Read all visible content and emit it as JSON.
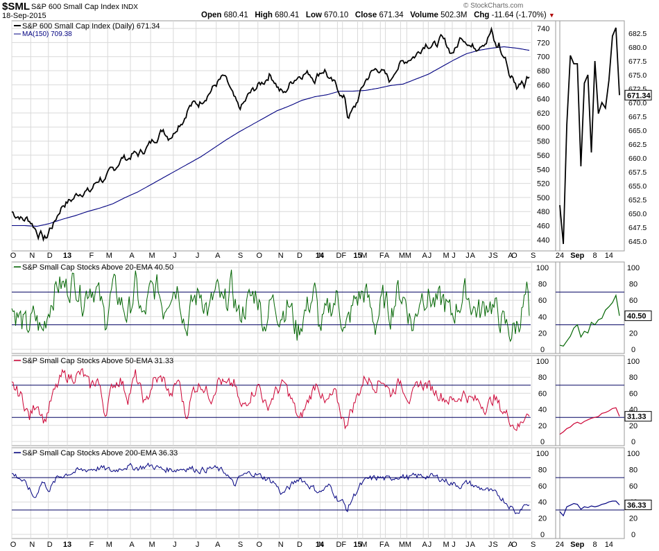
{
  "header": {
    "symbol": "$SML",
    "name": "S&P 600 Small Cap Index",
    "exchange": "INDX",
    "date": "18-Sep-2015",
    "watermark": "© StockCharts.com",
    "open_label": "Open",
    "open": "680.41",
    "high_label": "High",
    "high": "680.41",
    "low_label": "Low",
    "low": "670.10",
    "close_label": "Close",
    "close": "671.34",
    "volume_label": "Volume",
    "volume": "502.3M",
    "chg_label": "Chg",
    "chg": "-11.64 (-1.70%)"
  },
  "colors": {
    "price": "#000000",
    "ma": "#000080",
    "pct20": "#006400",
    "pct50": "#cc0033",
    "pct200": "#000080",
    "grid": "#d9d9d9",
    "ref": "#000060"
  },
  "chart_data": [
    {
      "id": "price",
      "type": "line",
      "title": "S&P 600 Small Cap Index (Daily) 671.34",
      "ma_label": "MA(150) 709.38",
      "last_value": "671.34",
      "ylim": [
        430,
        745
      ],
      "yticks": [
        440,
        460,
        480,
        500,
        520,
        540,
        560,
        580,
        600,
        620,
        640,
        660,
        680,
        700,
        720,
        740
      ],
      "keypoints": [
        [
          0,
          480
        ],
        [
          3,
          475
        ],
        [
          6,
          474
        ],
        [
          9,
          468
        ],
        [
          12,
          470
        ],
        [
          15,
          466
        ],
        [
          18,
          458
        ],
        [
          21,
          448
        ],
        [
          24,
          448
        ],
        [
          25,
          441
        ],
        [
          28,
          444
        ],
        [
          30,
          455
        ],
        [
          33,
          462
        ],
        [
          36,
          474
        ],
        [
          40,
          489
        ],
        [
          44,
          494
        ],
        [
          48,
          497
        ],
        [
          52,
          505
        ],
        [
          58,
          510
        ],
        [
          62,
          508
        ],
        [
          66,
          519
        ],
        [
          70,
          528
        ],
        [
          74,
          523
        ],
        [
          78,
          536
        ],
        [
          82,
          542
        ],
        [
          84,
          548
        ],
        [
          88,
          557
        ],
        [
          92,
          555
        ],
        [
          96,
          562
        ],
        [
          100,
          561
        ],
        [
          104,
          566
        ],
        [
          108,
          573
        ],
        [
          112,
          581
        ],
        [
          116,
          588
        ],
        [
          120,
          597
        ],
        [
          124,
          587
        ],
        [
          128,
          591
        ],
        [
          132,
          605
        ],
        [
          136,
          611
        ],
        [
          140,
          628
        ],
        [
          144,
          633
        ],
        [
          148,
          633
        ],
        [
          152,
          641
        ],
        [
          156,
          649
        ],
        [
          160,
          657
        ],
        [
          164,
          665
        ],
        [
          168,
          671
        ],
        [
          172,
          658
        ],
        [
          176,
          640
        ],
        [
          180,
          625
        ],
        [
          184,
          633
        ],
        [
          188,
          646
        ],
        [
          192,
          653
        ],
        [
          196,
          660
        ],
        [
          200,
          665
        ],
        [
          204,
          675
        ],
        [
          208,
          667
        ],
        [
          212,
          653
        ],
        [
          216,
          647
        ],
        [
          220,
          660
        ],
        [
          224,
          669
        ],
        [
          228,
          674
        ],
        [
          232,
          677
        ],
        [
          236,
          676
        ],
        [
          240,
          669
        ],
        [
          244,
          678
        ],
        [
          248,
          682
        ],
        [
          252,
          666
        ],
        [
          256,
          660
        ],
        [
          260,
          650
        ],
        [
          262,
          642
        ],
        [
          264,
          640
        ],
        [
          266,
          616
        ],
        [
          268,
          618
        ],
        [
          272,
          628
        ],
        [
          276,
          648
        ],
        [
          280,
          665
        ],
        [
          284,
          676
        ],
        [
          288,
          681
        ],
        [
          292,
          683
        ],
        [
          296,
          673
        ],
        [
          300,
          664
        ],
        [
          304,
          683
        ],
        [
          308,
          690
        ],
        [
          312,
          694
        ],
        [
          316,
          699
        ],
        [
          320,
          702
        ],
        [
          324,
          711
        ],
        [
          328,
          720
        ],
        [
          332,
          717
        ],
        [
          336,
          716
        ],
        [
          340,
          725
        ],
        [
          344,
          718
        ],
        [
          348,
          706
        ],
        [
          352,
          711
        ],
        [
          356,
          729
        ],
        [
          360,
          725
        ],
        [
          364,
          715
        ],
        [
          368,
          713
        ],
        [
          372,
          721
        ],
        [
          376,
          723
        ],
        [
          378,
          730
        ],
        [
          380,
          736
        ],
        [
          382,
          722
        ],
        [
          384,
          712
        ],
        [
          386,
          718
        ],
        [
          388,
          703
        ],
        [
          390,
          699
        ],
        [
          392,
          693
        ],
        [
          394,
          675
        ],
        [
          396,
          672
        ],
        [
          398,
          665
        ],
        [
          400,
          657
        ],
        [
          402,
          660
        ],
        [
          404,
          668
        ],
        [
          406,
          663
        ],
        [
          408,
          672
        ],
        [
          410,
          671
        ]
      ],
      "ma_keypoints": [
        [
          0,
          460
        ],
        [
          10,
          460
        ],
        [
          20,
          459
        ],
        [
          30,
          463
        ],
        [
          40,
          469
        ],
        [
          50,
          474
        ],
        [
          60,
          480
        ],
        [
          70,
          485
        ],
        [
          80,
          491
        ],
        [
          90,
          500
        ],
        [
          100,
          508
        ],
        [
          110,
          518
        ],
        [
          120,
          528
        ],
        [
          130,
          538
        ],
        [
          140,
          548
        ],
        [
          150,
          558
        ],
        [
          160,
          570
        ],
        [
          170,
          582
        ],
        [
          180,
          593
        ],
        [
          190,
          603
        ],
        [
          200,
          613
        ],
        [
          210,
          623
        ],
        [
          220,
          630
        ],
        [
          230,
          638
        ],
        [
          240,
          643
        ],
        [
          250,
          646
        ],
        [
          260,
          651
        ],
        [
          270,
          651
        ],
        [
          280,
          652
        ],
        [
          290,
          655
        ],
        [
          300,
          659
        ],
        [
          310,
          661
        ],
        [
          320,
          668
        ],
        [
          330,
          675
        ],
        [
          340,
          685
        ],
        [
          350,
          695
        ],
        [
          360,
          704
        ],
        [
          370,
          709
        ],
        [
          380,
          712
        ],
        [
          390,
          714
        ],
        [
          400,
          712
        ],
        [
          410,
          709
        ]
      ],
      "xticks": [
        [
          0,
          "O"
        ],
        [
          15,
          "N"
        ],
        [
          29,
          "D"
        ],
        [
          44,
          "13"
        ],
        [
          62,
          "F"
        ],
        [
          76,
          "M"
        ],
        [
          94,
          "A"
        ],
        [
          110,
          "M"
        ],
        [
          128,
          "J"
        ],
        [
          146,
          "J"
        ],
        [
          162,
          "A"
        ],
        [
          180,
          "S"
        ],
        [
          195,
          "O"
        ],
        [
          212,
          "N"
        ],
        [
          227,
          "D"
        ],
        [
          244,
          "14"
        ],
        [
          262,
          "F"
        ],
        [
          278,
          "M"
        ],
        [
          296,
          "A"
        ],
        [
          313,
          "M"
        ],
        [
          330,
          "J"
        ],
        [
          349,
          "J"
        ],
        [
          364,
          "A"
        ],
        [
          382,
          "S"
        ],
        [
          397,
          "O"
        ]
      ],
      "xticks_b": [
        [
          0,
          "N"
        ],
        [
          14,
          "D"
        ],
        [
          30,
          "15"
        ],
        [
          48,
          "F"
        ],
        [
          64,
          "M"
        ],
        [
          82,
          "A"
        ],
        [
          99,
          "M"
        ],
        [
          116,
          "J"
        ],
        [
          134,
          "J"
        ],
        [
          150,
          "A"
        ],
        [
          168,
          "S"
        ]
      ],
      "zoom_yticks": [
        645.0,
        647.5,
        650.0,
        652.5,
        655.0,
        657.5,
        660.0,
        662.5,
        665.0,
        667.5,
        670.0,
        672.5,
        675.0,
        677.5,
        680.0,
        682.5
      ],
      "zoom_ylim": [
        644,
        684
      ],
      "zoom_values": [
        651.5,
        644.5,
        666,
        678.5,
        677,
        677,
        658.5,
        673.5,
        675,
        661,
        677.5,
        668,
        670,
        669,
        674,
        682,
        683.5,
        671.34
      ],
      "zoom_xticks": [
        "24",
        "Sep",
        "8",
        "14"
      ]
    },
    {
      "id": "pct20",
      "type": "line",
      "title": "S&P Small Cap Stocks Above 20-EMA 40.50",
      "last_value": "40.50",
      "ylim": [
        0,
        100
      ],
      "yticks": [
        0,
        20,
        40,
        60,
        80,
        100
      ],
      "ref_lines": [
        30,
        70
      ],
      "zoom_values": [
        5,
        4,
        10,
        16,
        26,
        30,
        15,
        22,
        20,
        33,
        30,
        36,
        38,
        48,
        52,
        57,
        66,
        41
      ]
    },
    {
      "id": "pct50",
      "type": "line",
      "title": "S&P Small Cap Stocks Above 50-EMA 31.33",
      "last_value": "31.33",
      "ylim": [
        0,
        100
      ],
      "yticks": [
        0,
        20,
        40,
        60,
        80,
        100
      ],
      "ref_lines": [
        30,
        70
      ],
      "zoom_values": [
        9,
        12,
        16,
        18,
        22,
        24,
        22,
        25,
        27,
        29,
        30,
        31,
        35,
        36,
        38,
        41,
        42,
        31.33
      ]
    },
    {
      "id": "pct200",
      "type": "line",
      "title": "S&P Small Cap Stocks Above 200-EMA 36.33",
      "last_value": "36.33",
      "ylim": [
        0,
        100
      ],
      "yticks": [
        0,
        20,
        40,
        60,
        80,
        100
      ],
      "ref_lines": [
        30,
        70
      ],
      "zoom_values": [
        28,
        23,
        34,
        36,
        38,
        37,
        31,
        34,
        33,
        35,
        34,
        35,
        37,
        38,
        40,
        41,
        41,
        36.33
      ]
    }
  ]
}
